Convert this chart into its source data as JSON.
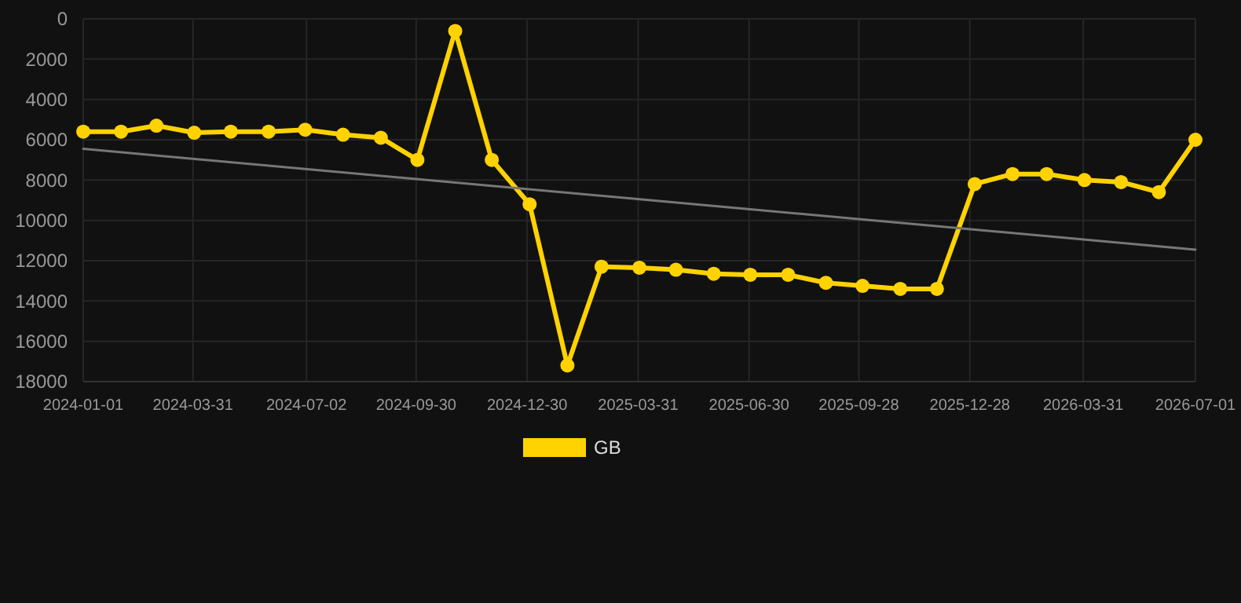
{
  "chart_data": {
    "type": "line",
    "x": [
      "2024-01-01",
      "2024-02-01",
      "2024-03-01",
      "2024-04-01",
      "2024-05-01",
      "2024-06-01",
      "2024-07-01",
      "2024-08-01",
      "2024-09-01",
      "2024-10-01",
      "2024-11-01",
      "2024-12-01",
      "2025-01-01",
      "2025-02-01",
      "2025-03-01",
      "2025-04-01",
      "2025-05-01",
      "2025-06-01",
      "2025-07-01",
      "2025-08-01",
      "2025-09-01",
      "2025-10-01",
      "2025-11-01",
      "2025-12-01",
      "2026-01-01",
      "2026-02-01",
      "2026-03-01",
      "2026-04-01",
      "2026-05-01",
      "2026-06-01",
      "2026-07-01"
    ],
    "series": [
      {
        "name": "GB",
        "color": "#ffd200",
        "marker": "circle",
        "values": [
          5600,
          5600,
          5300,
          5650,
          5600,
          5600,
          5500,
          5750,
          5900,
          7000,
          600,
          7000,
          9200,
          17200,
          12300,
          12350,
          12450,
          12650,
          12700,
          12700,
          13100,
          13250,
          13400,
          13400,
          8200,
          7700,
          7700,
          8000,
          8100,
          8600,
          6000
        ]
      },
      {
        "type": "line",
        "color": "#777777",
        "marker": "none",
        "x": [
          "2024-01-01",
          "2026-07-01"
        ],
        "values": [
          6450,
          11450
        ]
      }
    ],
    "xlim": [
      "2024-01-01",
      "2026-07-01"
    ],
    "xticks": [
      "2024-01-01",
      "2024-03-31",
      "2024-07-02",
      "2024-09-30",
      "2024-12-30",
      "2025-03-31",
      "2025-06-30",
      "2025-09-28",
      "2025-12-28",
      "2026-03-31",
      "2026-07-01"
    ],
    "ylim": [
      18000,
      0
    ],
    "yticks": [
      0,
      2000,
      4000,
      6000,
      8000,
      10000,
      12000,
      14000,
      16000,
      18000
    ],
    "grid": true,
    "legend": "bottom"
  }
}
